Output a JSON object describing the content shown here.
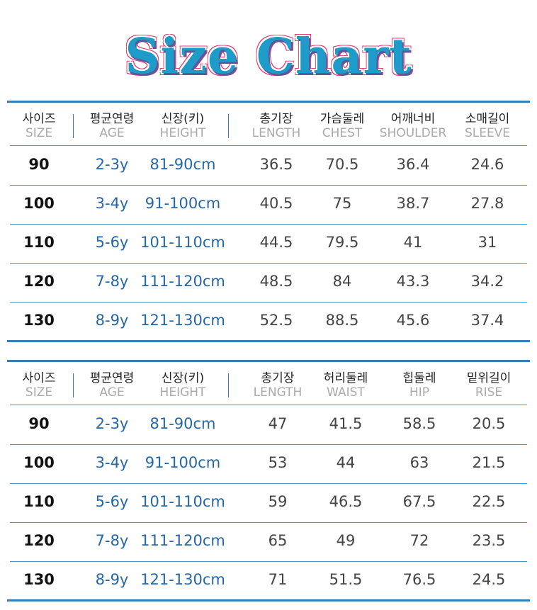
{
  "title": "Size Chart",
  "colors": {
    "title": "#1e9bc8",
    "title_outline": "#e0407a",
    "accent": "#3a7db4",
    "blue_text": "#2566a6"
  },
  "tables": [
    {
      "headers": [
        {
          "ko": "사이즈",
          "en": "SIZE"
        },
        {
          "ko": "평균연령",
          "en": "AGE"
        },
        {
          "ko": "신장(키)",
          "en": "HEIGHT"
        },
        {
          "ko": "총기장",
          "en": "LENGTH"
        },
        {
          "ko": "가슴둘레",
          "en": "CHEST"
        },
        {
          "ko": "어깨너비",
          "en": "SHOULDER"
        },
        {
          "ko": "소매길이",
          "en": "SLEEVE"
        }
      ],
      "rows": [
        [
          "90",
          "2-3y",
          "81-90cm",
          "36.5",
          "70.5",
          "36.4",
          "24.6"
        ],
        [
          "100",
          "3-4y",
          "91-100cm",
          "40.5",
          "75",
          "38.7",
          "27.8"
        ],
        [
          "110",
          "5-6y",
          "101-110cm",
          "44.5",
          "79.5",
          "41",
          "31"
        ],
        [
          "120",
          "7-8y",
          "111-120cm",
          "48.5",
          "84",
          "43.3",
          "34.2"
        ],
        [
          "130",
          "8-9y",
          "121-130cm",
          "52.5",
          "88.5",
          "45.6",
          "37.4"
        ]
      ]
    },
    {
      "headers": [
        {
          "ko": "사이즈",
          "en": "SIZE"
        },
        {
          "ko": "평균연령",
          "en": "AGE"
        },
        {
          "ko": "신장(키)",
          "en": "HEIGHT"
        },
        {
          "ko": "총기장",
          "en": "LENGTH"
        },
        {
          "ko": "허리둘레",
          "en": "WAIST"
        },
        {
          "ko": "힙둘레",
          "en": "HIP"
        },
        {
          "ko": "밑위길이",
          "en": "RISE"
        }
      ],
      "rows": [
        [
          "90",
          "2-3y",
          "81-90cm",
          "47",
          "41.5",
          "58.5",
          "20.5"
        ],
        [
          "100",
          "3-4y",
          "91-100cm",
          "53",
          "44",
          "63",
          "21.5"
        ],
        [
          "110",
          "5-6y",
          "101-110cm",
          "59",
          "46.5",
          "67.5",
          "22.5"
        ],
        [
          "120",
          "7-8y",
          "111-120cm",
          "65",
          "49",
          "72",
          "23.5"
        ],
        [
          "130",
          "8-9y",
          "121-130cm",
          "71",
          "51.5",
          "76.5",
          "24.5"
        ]
      ]
    }
  ]
}
